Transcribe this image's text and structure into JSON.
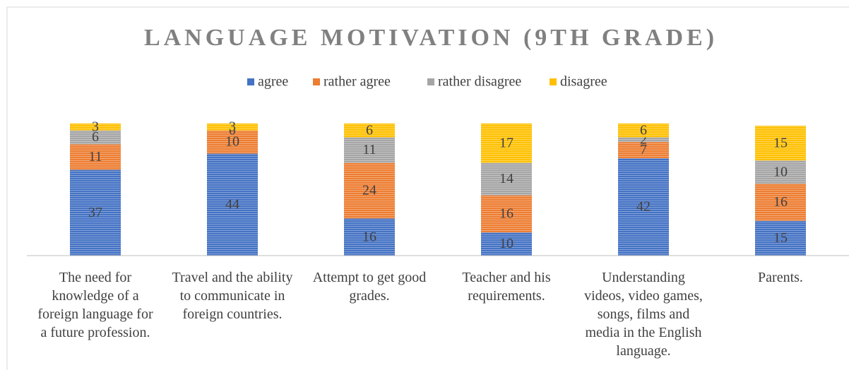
{
  "chart_data": {
    "type": "stacked_bar",
    "title": "LANGUAGE MOTIVATION (9TH GRADE)",
    "categories": [
      "The need for knowledge of a foreign language for a future profession.",
      "Travel and the ability to communicate in foreign countries.",
      "Attempt to get good grades.",
      "Teacher and his requirements.",
      "Understanding videos, video games, songs, films and media in the English language.",
      "Parents."
    ],
    "series": [
      {
        "name": "agree",
        "color": "#4472c4",
        "values": [
          37,
          44,
          16,
          10,
          42,
          15
        ]
      },
      {
        "name": "rather agree",
        "color": "#ed7d31",
        "values": [
          11,
          10,
          24,
          16,
          7,
          16
        ]
      },
      {
        "name": "rather disagree",
        "color": "#a5a5a5",
        "values": [
          6,
          0,
          11,
          14,
          2,
          10
        ]
      },
      {
        "name": "disagree",
        "color": "#ffc000",
        "values": [
          3,
          3,
          6,
          17,
          6,
          15
        ]
      }
    ],
    "ylim": [
      0,
      60
    ],
    "legend": "top"
  }
}
